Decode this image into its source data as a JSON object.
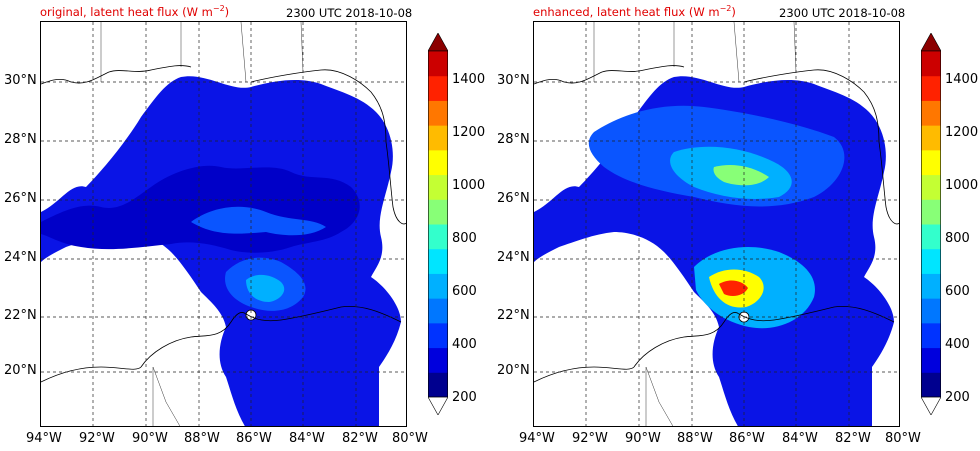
{
  "panels": [
    {
      "title_prefix": "original, latent heat flux (W m",
      "title_exp": "−2",
      "title_suffix": ")",
      "time": "2300 UTC 2018-10-08"
    },
    {
      "title_prefix": "enhanced, latent heat flux (W m",
      "title_exp": "−2",
      "title_suffix": ")",
      "time": "2300 UTC 2018-10-08"
    }
  ],
  "axes": {
    "x_ticks": [
      "94°W",
      "92°W",
      "90°W",
      "88°W",
      "86°W",
      "84°W",
      "82°W",
      "80°W"
    ],
    "y_ticks": [
      "30°N",
      "28°N",
      "26°N",
      "24°N",
      "22°N",
      "20°N"
    ]
  },
  "colorbar": {
    "levels": [
      200,
      300,
      400,
      500,
      600,
      700,
      800,
      900,
      1000,
      1100,
      1200,
      1300,
      1400,
      1500
    ],
    "labels": [
      "200",
      "400",
      "600",
      "800",
      "1000",
      "1200",
      "1400"
    ],
    "colors": [
      "#00008f",
      "#0000dd",
      "#0033ff",
      "#0077ff",
      "#00b0ff",
      "#00e5ff",
      "#33ffcc",
      "#88ff77",
      "#c4ff33",
      "#ffff00",
      "#ffbb00",
      "#ff7700",
      "#ff2200",
      "#cc0000"
    ],
    "over_color": "#8b0000",
    "under_color": "#ffffff"
  }
}
